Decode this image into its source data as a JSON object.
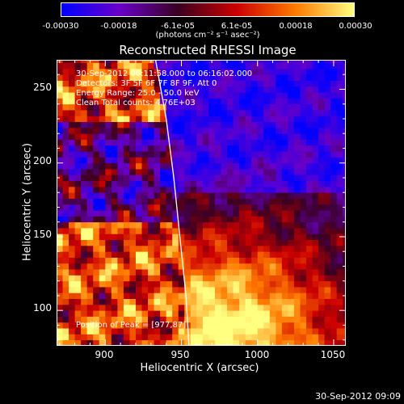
{
  "chart_data": {
    "type": "heatmap",
    "title": "Reconstructed RHESSI Image",
    "xlabel": "Heliocentric X (arcsec)",
    "ylabel": "Heliocentric Y (arcsec)",
    "xlim": [
      868,
      1058
    ],
    "ylim": [
      76,
      270
    ],
    "x_ticks": [
      "900",
      "950",
      "1000",
      "1050"
    ],
    "y_ticks": [
      "100",
      "150",
      "200",
      "250"
    ],
    "colorbar": {
      "ticks": [
        "-0.00030",
        "-0.00018",
        "-6.1e-05",
        "6.1e-05",
        "0.00018",
        "0.00030"
      ],
      "unit": "(photons cm⁻² s⁻¹ asec⁻²)",
      "range": [
        -0.0003,
        0.0003
      ],
      "colors": [
        "#0000ff",
        "#6a00c8",
        "#3a0020",
        "#cc0000",
        "#ff7a00",
        "#ffff80"
      ]
    },
    "annotations": {
      "time": "30-Sep-2012 06:11:58.000 to 06:16:02.000",
      "detectors": "Detectors: 3F 5F 6F 7F 8F 9F, Att 0",
      "energy": "Energy Range: 25.0 - 50.0 keV",
      "clean": "Clean    Total counts: 4.76E+03",
      "peak": "Position of Peak = [977,87]"
    },
    "limb_curve": [
      [
        933,
        270
      ],
      [
        940,
        230
      ],
      [
        945,
        190
      ],
      [
        949,
        150
      ],
      [
        953,
        110
      ],
      [
        955,
        76
      ]
    ],
    "peak_position": [
      977,
      87
    ]
  },
  "footer": {
    "stamp": "30-Sep-2012 09:09"
  }
}
